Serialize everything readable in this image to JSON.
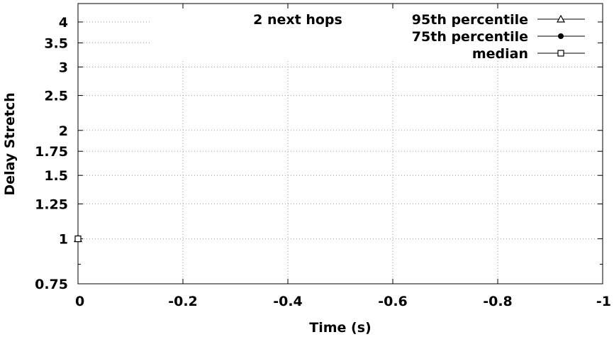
{
  "chart_data": {
    "type": "line",
    "title": "2 next hops",
    "xlabel": "Time (s)",
    "ylabel": "Delay Stretch",
    "xlim": [
      0,
      -1
    ],
    "ylim": [
      0.75,
      4.5
    ],
    "y_scale": "log",
    "x_ticks": [
      {
        "value": 0,
        "label": "0"
      },
      {
        "value": -0.2,
        "label": "-0.2"
      },
      {
        "value": -0.4,
        "label": "-0.4"
      },
      {
        "value": -0.6,
        "label": "-0.6"
      },
      {
        "value": -0.8,
        "label": "-0.8"
      },
      {
        "value": -1,
        "label": "-1"
      }
    ],
    "y_ticks": [
      {
        "value": 0.75,
        "label": "0.75"
      },
      {
        "value": 1,
        "label": "1"
      },
      {
        "value": 1.25,
        "label": "1.25"
      },
      {
        "value": 1.5,
        "label": "1.5"
      },
      {
        "value": 1.75,
        "label": "1.75"
      },
      {
        "value": 2,
        "label": "2"
      },
      {
        "value": 2.5,
        "label": "2.5"
      },
      {
        "value": 3,
        "label": "3"
      },
      {
        "value": 3.5,
        "label": "3.5"
      },
      {
        "value": 4,
        "label": "4"
      }
    ],
    "y_minor_ticks": [
      0.85
    ],
    "grid": true,
    "legend_position": "top-right",
    "series": [
      {
        "name": "95th percentile",
        "marker": "triangle-open",
        "x": [
          0
        ],
        "y": [
          1
        ]
      },
      {
        "name": "75th percentile",
        "marker": "circle-filled",
        "x": [
          0
        ],
        "y": [
          1
        ]
      },
      {
        "name": "median",
        "marker": "square-open",
        "x": [
          0
        ],
        "y": [
          1
        ]
      }
    ]
  }
}
